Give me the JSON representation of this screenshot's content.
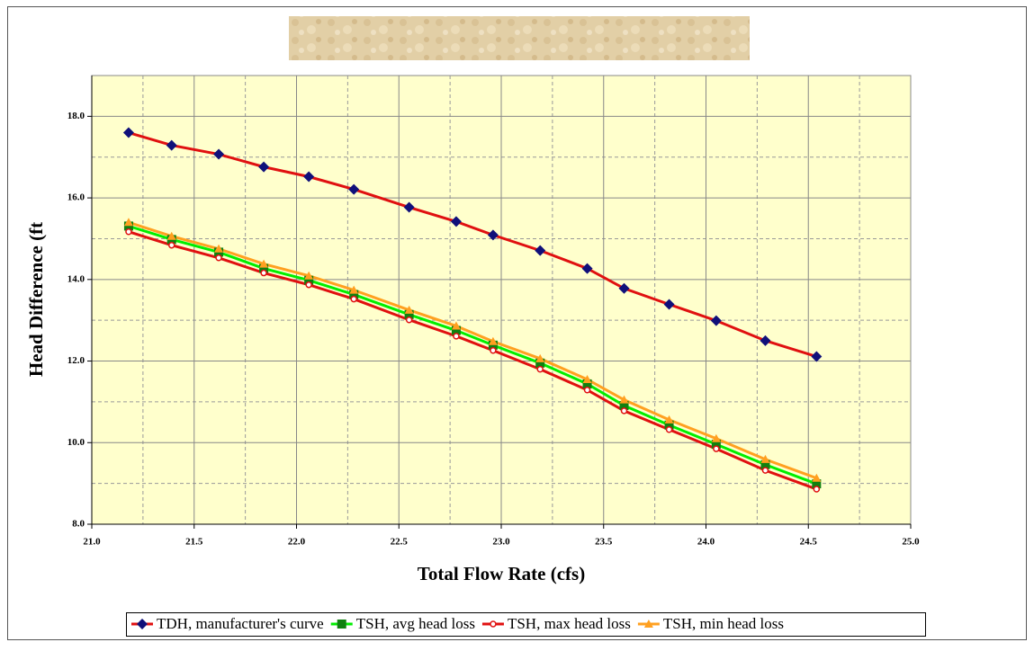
{
  "chart_data": {
    "type": "line",
    "x_label": "Total Flow Rate (cfs)",
    "y_label": "Head Difference (ft",
    "x": [
      21.18,
      21.39,
      21.62,
      21.84,
      22.06,
      22.28,
      22.55,
      22.78,
      22.96,
      23.19,
      23.42,
      23.6,
      23.82,
      24.05,
      24.29,
      24.54
    ],
    "series": [
      {
        "name": "TDH, manufacturer's curve",
        "color": "#e01010",
        "marker": "diamond",
        "marker_color": "#10107a",
        "values": [
          17.6,
          17.29,
          17.07,
          16.76,
          16.52,
          16.21,
          15.77,
          15.42,
          15.09,
          14.71,
          14.27,
          13.78,
          13.39,
          12.99,
          12.5,
          12.11
        ]
      },
      {
        "name": "TSH, avg head loss",
        "color": "#00ee00",
        "marker": "square",
        "marker_color": "#108010",
        "values": [
          15.31,
          14.98,
          14.67,
          14.27,
          13.98,
          13.63,
          13.14,
          12.75,
          12.39,
          11.95,
          11.44,
          10.91,
          10.43,
          9.96,
          9.46,
          8.99
        ]
      },
      {
        "name": "TSH, max head loss",
        "color": "#e01010",
        "marker": "circle",
        "marker_color": "#e01010",
        "values": [
          15.17,
          14.84,
          14.53,
          14.16,
          13.87,
          13.52,
          13.01,
          12.61,
          12.26,
          11.8,
          11.29,
          10.78,
          10.32,
          9.85,
          9.32,
          8.86
        ]
      },
      {
        "name": "TSH, min head loss",
        "color": "#ffa020",
        "marker": "triangle",
        "marker_color": "#ffa020",
        "values": [
          15.4,
          15.06,
          14.75,
          14.38,
          14.09,
          13.74,
          13.25,
          12.86,
          12.48,
          12.06,
          11.55,
          11.05,
          10.56,
          10.1,
          9.59,
          9.13
        ]
      }
    ],
    "xlim": [
      21,
      25
    ],
    "xticks": [
      {
        "value": 21,
        "label": "21.0"
      },
      {
        "value": 21.5,
        "label": "21.5"
      },
      {
        "value": 22,
        "label": "22.0"
      },
      {
        "value": 22.5,
        "label": "22.5"
      },
      {
        "value": 23,
        "label": "23.0"
      },
      {
        "value": 23.5,
        "label": "23.5"
      },
      {
        "value": 24,
        "label": "24.0"
      },
      {
        "value": 24.5,
        "label": "24.5"
      },
      {
        "value": 25,
        "label": "25.0"
      }
    ],
    "ylim": [
      8,
      19
    ],
    "yticks": [
      {
        "value": 8,
        "label": "8.0"
      },
      {
        "value": 10,
        "label": "10.0"
      },
      {
        "value": 12,
        "label": "12.0"
      },
      {
        "value": 14,
        "label": "14.0"
      },
      {
        "value": 16,
        "label": "16.0"
      },
      {
        "value": 18,
        "label": "18.0"
      }
    ],
    "grid": true,
    "minor_grid": true,
    "plot_background": "#ffffcc",
    "legend": "bottom"
  }
}
